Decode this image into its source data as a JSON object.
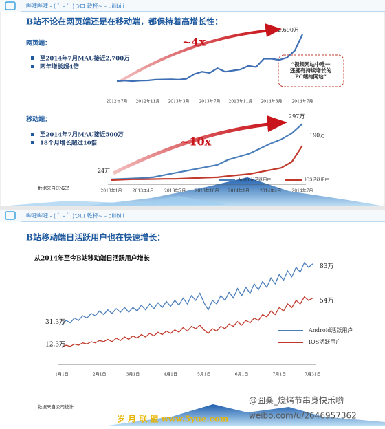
{
  "slides": [
    {
      "header": "哔哩哔哩 - ( ゜- ゜)つロ 乾杯~ - bilibili",
      "title": "B站不论在网页端还是在移动端，都保持着高增长性：",
      "web": {
        "label": "网页端：",
        "bullets": [
          "至2014年7月MAU接近2,700万",
          "两年增长超4倍"
        ]
      },
      "mobile": {
        "label": "移动端：",
        "bullets": [
          "至2014年7月MAU接近500万",
          "18个月增长超过10倍"
        ]
      },
      "source": "数据来自CNZZ"
    },
    {
      "header": "哔哩哔哩 - ( ゜- ゜)つロ 乾杯~ - bilibili",
      "title": "B站移动端日活跃用户也在快速增长：",
      "source": "数据来自公司统计"
    }
  ],
  "chart_data": [
    {
      "type": "line",
      "color": "#3f6fb5",
      "categories": [
        "2012年7月",
        null,
        null,
        null,
        "2012年11月",
        null,
        null,
        null,
        "2013年3月",
        null,
        null,
        null,
        "2013年7月",
        null,
        null,
        null,
        "2013年11月",
        null,
        null,
        null,
        "2014年3月",
        null,
        null,
        null,
        "2014年7月"
      ],
      "values": [
        700,
        720,
        700,
        720,
        730,
        760,
        770,
        780,
        760,
        800,
        1000,
        1100,
        1050,
        1250,
        1100,
        1150,
        1200,
        1350,
        1300,
        1650,
        1650,
        1600,
        1700,
        2000,
        2690
      ],
      "value_labels": [
        null,
        null,
        null,
        null,
        null,
        null,
        null,
        null,
        null,
        null,
        null,
        null,
        null,
        null,
        null,
        null,
        null,
        null,
        null,
        null,
        null,
        null,
        null,
        null,
        "2,690万"
      ],
      "annotations": [
        "~4x"
      ],
      "callout": [
        "“视频网站中唯一",
        "还拥有持续增长的",
        "PC端的网站”"
      ]
    },
    {
      "type": "line",
      "categories": [
        "2013年1月",
        null,
        null,
        "2013年4月",
        null,
        null,
        "2013年7月",
        null,
        null,
        "2013年10月",
        null,
        null,
        "2014年1月",
        null,
        null,
        "2014年4月",
        null,
        null,
        "2014年7月"
      ],
      "series": [
        {
          "name": "Android活跃用户",
          "color": "#4a7ebb",
          "values": [
            24,
            26,
            28,
            30,
            35,
            45,
            55,
            65,
            75,
            85,
            95,
            120,
            135,
            150,
            175,
            200,
            220,
            250,
            297
          ],
          "value_labels": [
            "24万",
            null,
            null,
            null,
            null,
            null,
            null,
            null,
            null,
            null,
            null,
            null,
            null,
            null,
            null,
            null,
            null,
            null,
            "297万"
          ]
        },
        {
          "name": "IOS活跃用户",
          "color": "#c0392b",
          "values": [
            20,
            22,
            24,
            24,
            25,
            26,
            26,
            28,
            30,
            32,
            34,
            40,
            45,
            50,
            60,
            70,
            80,
            110,
            190
          ],
          "value_labels": [
            null,
            null,
            null,
            null,
            null,
            null,
            null,
            null,
            null,
            null,
            null,
            null,
            null,
            null,
            null,
            null,
            null,
            null,
            "190万"
          ]
        }
      ],
      "annotations": [
        "~10x"
      ]
    },
    {
      "type": "line",
      "title": "从2014年至今B站移动端日活跃用户增长",
      "categories": [
        "1月1日",
        null,
        null,
        null,
        null,
        null,
        null,
        null,
        null,
        "2月1日",
        null,
        null,
        null,
        null,
        null,
        null,
        null,
        "3月1日",
        null,
        null,
        null,
        null,
        null,
        null,
        null,
        null,
        "4月1日",
        null,
        null,
        null,
        null,
        null,
        null,
        null,
        "5月1日",
        null,
        null,
        null,
        null,
        null,
        null,
        null,
        null,
        "6月1日",
        null,
        null,
        null,
        null,
        null,
        null,
        null,
        null,
        "7月1日",
        null,
        null,
        null,
        null,
        null,
        null,
        null,
        "7月31日"
      ],
      "series": [
        {
          "name": "Android活跃用户",
          "color": "#4a7ebb",
          "values": [
            31.3,
            35,
            33,
            37,
            35,
            39,
            37,
            41,
            39,
            43,
            40,
            44,
            41,
            45,
            42,
            46,
            42,
            46,
            43,
            48,
            44,
            49,
            45,
            50,
            46,
            51,
            47,
            52,
            48,
            54,
            49,
            56,
            52,
            58,
            50,
            44,
            52,
            49,
            56,
            52,
            59,
            54,
            62,
            56,
            63,
            58,
            66,
            61,
            68,
            63,
            71,
            66,
            74,
            69,
            77,
            72,
            80,
            76,
            84,
            80,
            83
          ],
          "value_labels": [
            "31.3万",
            null,
            null,
            null,
            null,
            null,
            null,
            null,
            null,
            null,
            null,
            null,
            null,
            null,
            null,
            null,
            null,
            null,
            null,
            null,
            null,
            null,
            null,
            null,
            null,
            null,
            null,
            null,
            null,
            null,
            null,
            null,
            null,
            null,
            null,
            null,
            null,
            null,
            null,
            null,
            null,
            null,
            null,
            null,
            null,
            null,
            null,
            null,
            null,
            null,
            null,
            null,
            null,
            null,
            null,
            null,
            null,
            null,
            null,
            null,
            "83万"
          ]
        },
        {
          "name": "IOS活跃用户",
          "color": "#c0392b",
          "values": [
            12.3,
            14,
            13,
            15,
            14,
            16,
            15,
            17,
            16,
            18,
            17,
            19,
            17,
            20,
            18,
            21,
            19,
            22,
            20,
            23,
            21,
            24,
            22,
            25,
            23,
            26,
            24,
            27,
            25,
            29,
            26,
            30,
            28,
            31,
            27,
            24,
            28,
            26,
            30,
            28,
            32,
            30,
            34,
            31,
            35,
            33,
            37,
            35,
            40,
            38,
            43,
            40,
            46,
            43,
            49,
            46,
            52,
            49,
            55,
            52,
            54
          ],
          "value_labels": [
            "12.3万",
            null,
            null,
            null,
            null,
            null,
            null,
            null,
            null,
            null,
            null,
            null,
            null,
            null,
            null,
            null,
            null,
            null,
            null,
            null,
            null,
            null,
            null,
            null,
            null,
            null,
            null,
            null,
            null,
            null,
            null,
            null,
            null,
            null,
            null,
            null,
            null,
            null,
            null,
            null,
            null,
            null,
            null,
            null,
            null,
            null,
            null,
            null,
            null,
            null,
            null,
            null,
            null,
            null,
            null,
            null,
            null,
            null,
            null,
            null,
            "54万"
          ]
        }
      ]
    }
  ],
  "watermark": {
    "weibo": "@囧桑_烧烤节串身快乐哟",
    "url": "weibo.com/u/2646957362",
    "site": "岁 月 联 盟  www.5yue.com"
  }
}
